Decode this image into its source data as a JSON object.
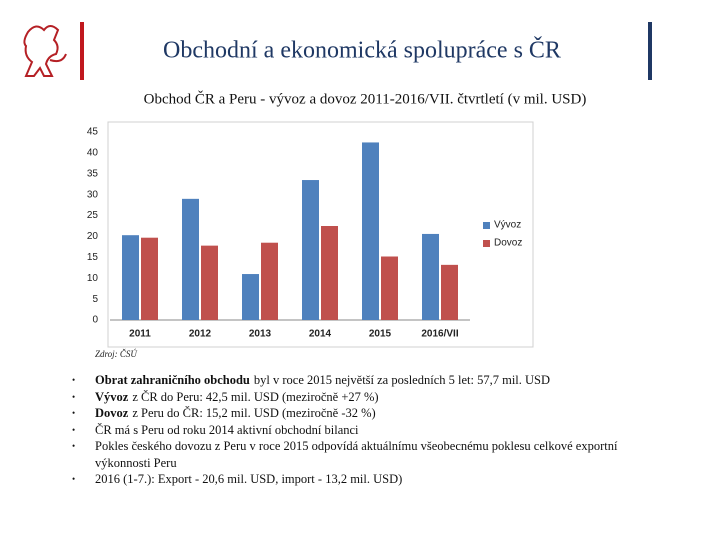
{
  "header": {
    "title": "Obchodní a ekonomická spolupráce s ČR"
  },
  "chart_data": {
    "type": "bar",
    "title": "Obchod ČR a Peru - vývoz a dovoz 2011-2016/VII. čtvrtletí (v mil. USD)",
    "categories": [
      "2011",
      "2012",
      "2013",
      "2014",
      "2015",
      "2016/VII"
    ],
    "series": [
      {
        "name": "Vývoz",
        "color": "#4f81bd",
        "values": [
          20.3,
          29,
          11,
          33.5,
          42.5,
          20.6
        ]
      },
      {
        "name": "Dovoz",
        "color": "#c0504d",
        "values": [
          19.7,
          17.8,
          18.5,
          22.5,
          15.2,
          13.2
        ]
      }
    ],
    "ylim": [
      0,
      45
    ],
    "yticks": [
      0,
      5,
      10,
      15,
      20,
      25,
      30,
      35,
      40,
      45
    ],
    "grid": false,
    "legend": "right",
    "source": "Zdroj: ČSÚ"
  },
  "bullets": [
    {
      "bold": "Obrat zahraničního obchodu",
      "text": "byl v roce 2015 největší za posledních 5 let: 57,7 mil. USD"
    },
    {
      "bold": "Vývoz",
      "text": "z ČR do Peru: 42,5 mil. USD (meziročně +27 %)"
    },
    {
      "bold": "Dovoz",
      "text": "z Peru do ČR: 15,2 mil. USD (meziročně -32 %)"
    },
    {
      "text": "ČR má s Peru od roku 2014 aktivní obchodní bilanci"
    },
    {
      "text": "Pokles českého dovozu z Peru v roce 2015 odpovídá aktuálnímu všeobecnému poklesu celkové exportní výkonnosti Peru"
    },
    {
      "text": "2016 (1-7.): Export - 20,6 mil. USD, import - 13,2 mil. USD)"
    }
  ]
}
